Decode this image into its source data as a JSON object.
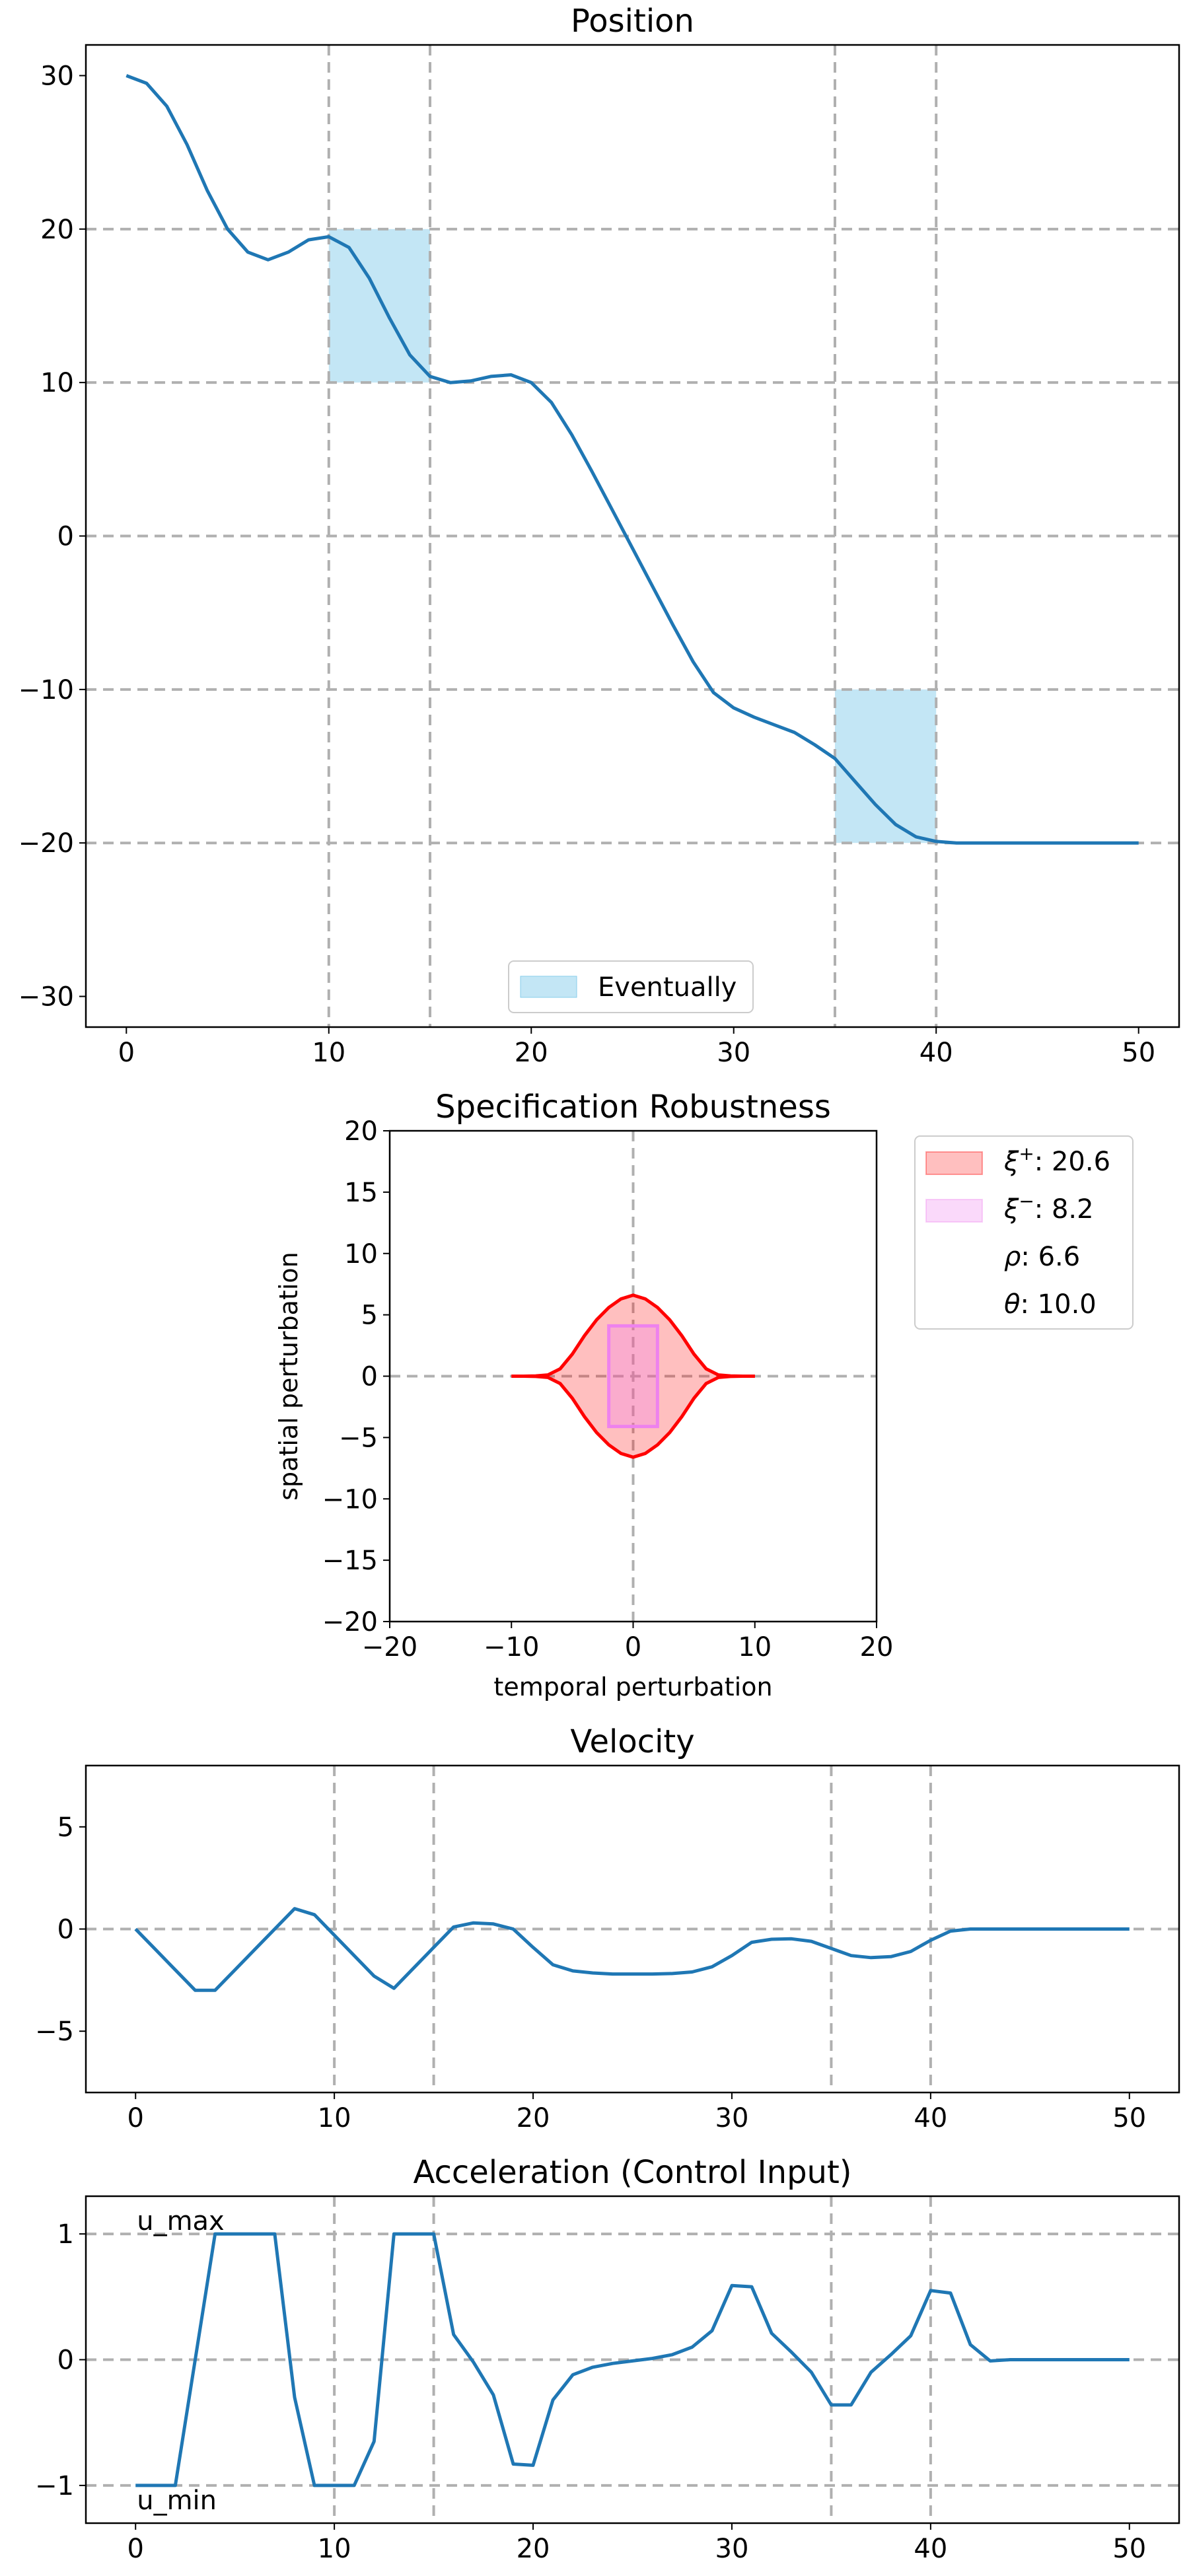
{
  "colors": {
    "line": "#1f77b4",
    "eventually_fill": "#87ceeb",
    "grid": "#b0b0b0",
    "robust_outer": "#ff0000",
    "robust_inner": "#ee82ee"
  },
  "chart_data": [
    {
      "id": "position",
      "type": "line",
      "title": "Position",
      "xlabel": "",
      "ylabel": "",
      "xlim": [
        -2,
        52
      ],
      "ylim": [
        -32,
        32
      ],
      "xticks": [
        0,
        10,
        20,
        30,
        40,
        50
      ],
      "yticks": [
        30,
        20,
        10,
        0,
        -10,
        -20,
        -30
      ],
      "ytick_labels": [
        "30",
        "20",
        "10",
        "0",
        "−10",
        "−20",
        "−30"
      ],
      "grid": {
        "vertical": [
          10,
          15,
          35,
          40
        ],
        "horizontal": [
          20,
          10,
          0,
          -10,
          -20
        ]
      },
      "regions": [
        {
          "x": [
            10,
            15
          ],
          "y": [
            10,
            20
          ]
        },
        {
          "x": [
            35,
            40
          ],
          "y": [
            -20,
            -10
          ]
        }
      ],
      "legend": {
        "position": "bottom-center",
        "entries": [
          "Eventually"
        ]
      },
      "x": [
        0,
        1,
        2,
        3,
        4,
        5,
        6,
        7,
        8,
        9,
        10,
        11,
        12,
        13,
        14,
        15,
        16,
        17,
        18,
        19,
        20,
        21,
        22,
        23,
        24,
        25,
        26,
        27,
        28,
        29,
        30,
        31,
        32,
        33,
        34,
        35,
        36,
        37,
        38,
        39,
        40,
        41,
        42,
        43,
        44,
        45,
        46,
        47,
        48,
        49,
        50
      ],
      "y": [
        30,
        29.5,
        28,
        25.5,
        22.5,
        20,
        18.5,
        18,
        18.5,
        19.3,
        19.5,
        18.8,
        16.8,
        14.2,
        11.8,
        10.4,
        10,
        10.1,
        10.4,
        10.5,
        10,
        8.7,
        6.6,
        4.2,
        1.7,
        -0.8,
        -3.3,
        -5.8,
        -8.2,
        -10.2,
        -11.2,
        -11.8,
        -12.3,
        -12.8,
        -13.6,
        -14.5,
        -16,
        -17.5,
        -18.8,
        -19.6,
        -19.9,
        -20,
        -20,
        -20,
        -20,
        -20,
        -20,
        -20,
        -20,
        -20,
        -20
      ]
    },
    {
      "id": "robustness",
      "type": "area",
      "title": "Specification Robustness",
      "xlabel": "temporal perturbation",
      "ylabel": "spatial perturbation",
      "xlim": [
        -20,
        20
      ],
      "ylim": [
        -20,
        20
      ],
      "xticks": [
        -20,
        -10,
        0,
        10,
        20
      ],
      "xtick_labels": [
        "−20",
        "−10",
        "0",
        "10",
        "20"
      ],
      "yticks": [
        20,
        15,
        10,
        5,
        0,
        -5,
        -10,
        -15,
        -20
      ],
      "ytick_labels": [
        "20",
        "15",
        "10",
        "5",
        "0",
        "−5",
        "−10",
        "−15",
        "−20"
      ],
      "grid": {
        "vertical": [
          0
        ],
        "horizontal": [
          0
        ]
      },
      "outer_region": {
        "x": [
          -10,
          -9,
          -8,
          -7,
          -6,
          -5,
          -4,
          -3,
          -2,
          -1,
          0,
          1,
          2,
          3,
          4,
          5,
          6,
          7,
          8,
          9,
          10
        ],
        "y_upper": [
          0,
          0,
          0.02,
          0.1,
          0.6,
          1.8,
          3.3,
          4.6,
          5.6,
          6.3,
          6.6,
          6.3,
          5.6,
          4.6,
          3.3,
          1.8,
          0.6,
          0.1,
          0.02,
          0,
          0
        ]
      },
      "inner_region": {
        "x": [
          -2,
          2
        ],
        "y": [
          -4.1,
          4.1
        ]
      },
      "legend": {
        "position": "right",
        "entries": [
          {
            "symbol": "ξ",
            "sup": "+",
            "value": ": 20.6"
          },
          {
            "symbol": "ξ",
            "sup": "−",
            "value": ": 8.2"
          },
          {
            "symbol": "ρ",
            "sup": "",
            "value": ": 6.6"
          },
          {
            "symbol": "θ",
            "sup": "",
            "value": ": 10.0"
          }
        ]
      }
    },
    {
      "id": "velocity",
      "type": "line",
      "title": "Velocity",
      "xlabel": "",
      "ylabel": "",
      "xlim": [
        -2.5,
        52.5
      ],
      "ylim": [
        -8,
        8
      ],
      "xticks": [
        0,
        10,
        20,
        30,
        40,
        50
      ],
      "yticks": [
        5,
        0,
        -5
      ],
      "ytick_labels": [
        "5",
        "0",
        "−5"
      ],
      "grid": {
        "vertical": [
          10,
          15,
          35,
          40
        ],
        "horizontal": [
          0
        ]
      },
      "x": [
        0,
        1,
        2,
        3,
        4,
        5,
        6,
        7,
        8,
        9,
        10,
        11,
        12,
        13,
        14,
        15,
        16,
        17,
        18,
        19,
        20,
        21,
        22,
        23,
        24,
        25,
        26,
        27,
        28,
        29,
        30,
        31,
        32,
        33,
        34,
        35,
        36,
        37,
        38,
        39,
        40,
        41,
        42,
        43,
        44,
        45,
        46,
        47,
        48,
        49,
        50
      ],
      "y": [
        0,
        -1,
        -2,
        -3,
        -3,
        -2,
        -1,
        0,
        1,
        0.7,
        -0.3,
        -1.3,
        -2.3,
        -2.9,
        -1.9,
        -0.9,
        0.1,
        0.3,
        0.25,
        0,
        -0.9,
        -1.75,
        -2.05,
        -2.15,
        -2.2,
        -2.2,
        -2.2,
        -2.18,
        -2.1,
        -1.85,
        -1.3,
        -0.65,
        -0.5,
        -0.48,
        -0.6,
        -0.95,
        -1.3,
        -1.4,
        -1.35,
        -1.1,
        -0.55,
        -0.1,
        0,
        0,
        0,
        0,
        0,
        0,
        0,
        0,
        0
      ]
    },
    {
      "id": "acceleration",
      "type": "line",
      "title": "Acceleration (Control Input)",
      "xlabel": "",
      "ylabel": "",
      "xlim": [
        -2.5,
        52.5
      ],
      "ylim": [
        -1.3,
        1.3
      ],
      "xticks": [
        0,
        10,
        20,
        30,
        40,
        50
      ],
      "yticks": [
        1,
        0,
        -1
      ],
      "ytick_labels": [
        "1",
        "0",
        "−1"
      ],
      "grid": {
        "vertical": [
          10,
          15,
          35,
          40
        ],
        "horizontal": [
          1,
          0,
          -1
        ]
      },
      "annotations": [
        {
          "text": "u_max",
          "x": 0,
          "y": 1
        },
        {
          "text": "u_min",
          "x": 0,
          "y": -1
        }
      ],
      "x": [
        0,
        1,
        2,
        3,
        4,
        5,
        6,
        7,
        8,
        9,
        10,
        11,
        12,
        13,
        14,
        15,
        16,
        17,
        18,
        19,
        20,
        21,
        22,
        23,
        24,
        25,
        26,
        27,
        28,
        29,
        30,
        31,
        32,
        33,
        34,
        35,
        36,
        37,
        38,
        39,
        40,
        41,
        42,
        43,
        44,
        45,
        46,
        47,
        48,
        49,
        50
      ],
      "y": [
        -1,
        -1,
        -1,
        0,
        1,
        1,
        1,
        1,
        -0.3,
        -1,
        -1,
        -1,
        -0.65,
        1,
        1,
        1,
        0.2,
        -0.02,
        -0.28,
        -0.83,
        -0.84,
        -0.32,
        -0.12,
        -0.06,
        -0.03,
        -0.01,
        0.01,
        0.04,
        0.1,
        0.23,
        0.59,
        0.58,
        0.21,
        0.06,
        -0.1,
        -0.36,
        -0.36,
        -0.1,
        0.04,
        0.19,
        0.55,
        0.53,
        0.12,
        -0.01,
        0,
        0,
        0,
        0,
        0,
        0,
        0
      ]
    }
  ]
}
